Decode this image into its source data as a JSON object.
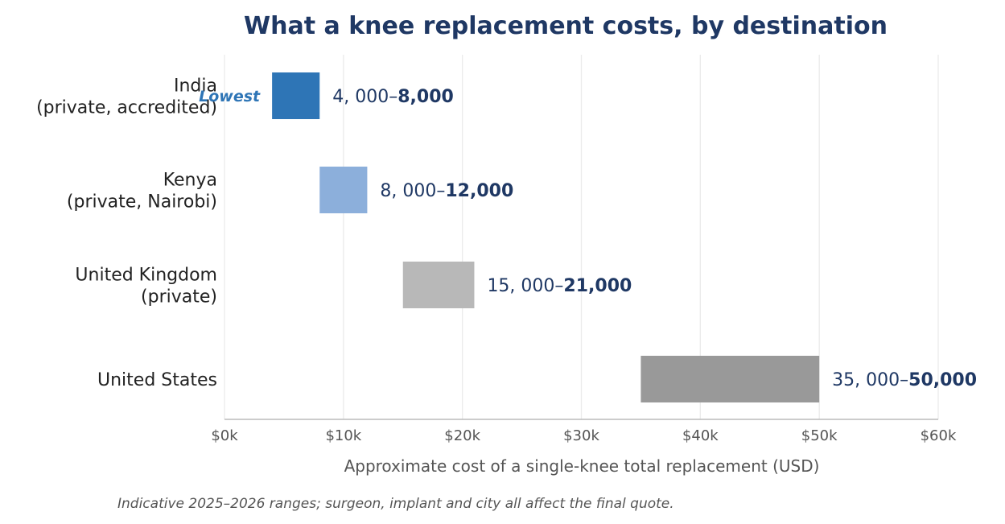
{
  "chart_data": {
    "type": "bar",
    "orientation": "horizontal-range",
    "title": "What a knee replacement costs, by destination",
    "xlabel": "Approximate cost of a single-knee total replacement (USD)",
    "ylabel": "",
    "xlim": [
      0,
      60000
    ],
    "x_ticks": [
      0,
      10000,
      20000,
      30000,
      40000,
      50000,
      60000
    ],
    "x_tick_labels": [
      "$0k",
      "$10k",
      "$20k",
      "$30k",
      "$40k",
      "$50k",
      "$60k"
    ],
    "grid": "vertical",
    "categories": [
      {
        "label_lines": [
          "India",
          "(private, accredited)"
        ],
        "low": 4000,
        "high": 8000,
        "color": "#2e75b6",
        "low_label": "4, 000–",
        "high_label": "8,000",
        "badge": "Lowest"
      },
      {
        "label_lines": [
          "Kenya",
          "(private, Nairobi)"
        ],
        "low": 8000,
        "high": 12000,
        "color": "#8cafdb",
        "low_label": "8, 000–",
        "high_label": "12,000"
      },
      {
        "label_lines": [
          "United Kingdom",
          "(private)"
        ],
        "low": 15000,
        "high": 21000,
        "color": "#b8b8b8",
        "low_label": "15, 000–",
        "high_label": "21,000"
      },
      {
        "label_lines": [
          "United States"
        ],
        "low": 35000,
        "high": 50000,
        "color": "#999999",
        "low_label": "35, 000–",
        "high_label": "50,000"
      }
    ],
    "footnote": "Indicative 2025–2026 ranges; surgeon, implant and city all affect the final quote.",
    "colors": {
      "title": "#1f3864",
      "value_label": "#1f3864",
      "category_text": "#222222",
      "tick_text": "#555555",
      "axis_title": "#555555",
      "note": "#555555",
      "badge": "#2e75b6",
      "grid": "#ebebeb",
      "axis_line": "#bbbbbb"
    }
  }
}
